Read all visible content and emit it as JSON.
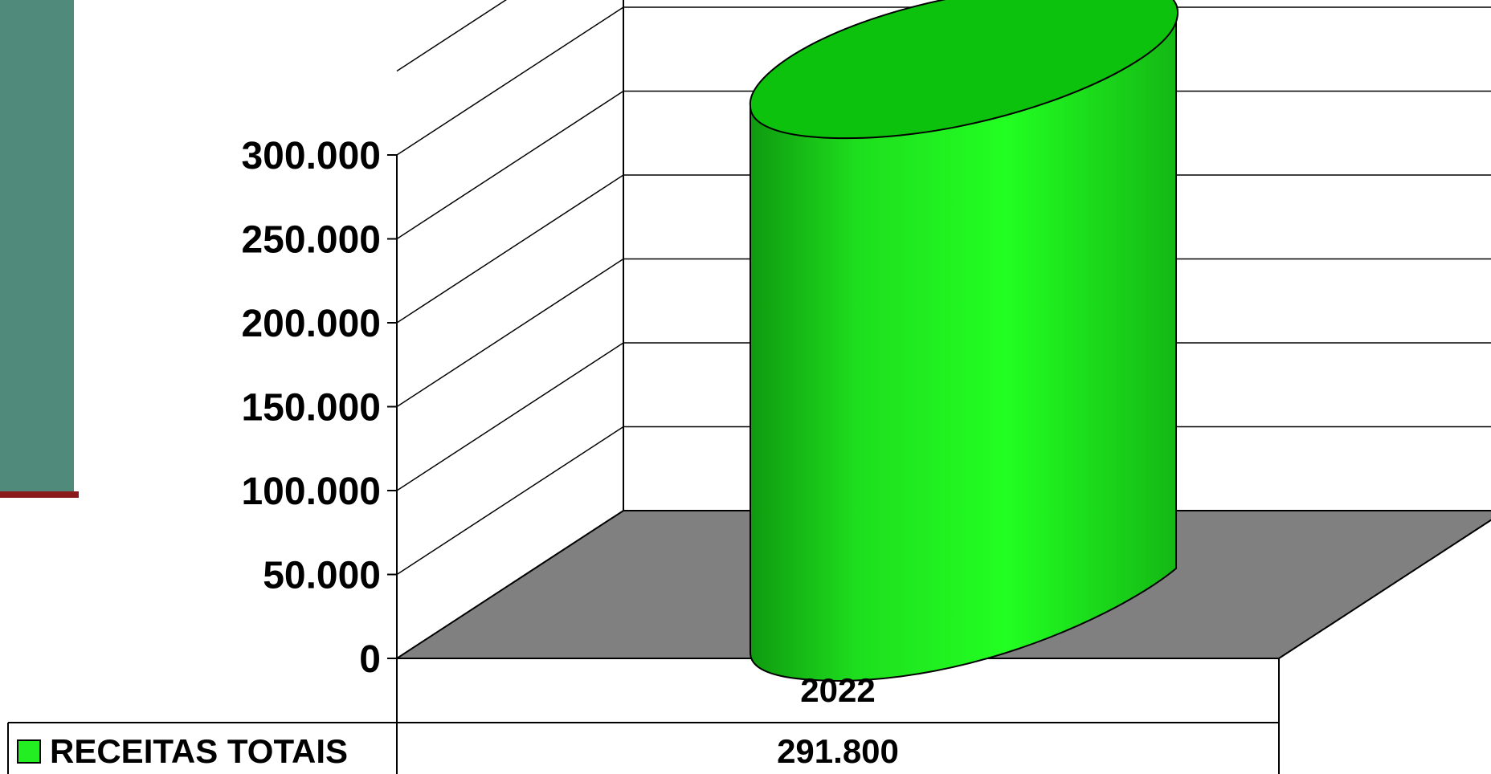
{
  "chart_data": {
    "type": "bar",
    "categories": [
      "2022"
    ],
    "series": [
      {
        "name": "RECEITAS TOTAIS",
        "values": [
          291800
        ],
        "value_label": "291.800",
        "color": "#22ee22"
      }
    ],
    "ylim": [
      0,
      350000
    ],
    "ytick_values": [
      0,
      50000,
      100000,
      150000,
      200000,
      250000,
      300000
    ],
    "ytick_labels": [
      "0",
      "50.000",
      "100.000",
      "150.000",
      "200.000",
      "250.000",
      "300.000"
    ],
    "grid": true,
    "legend": "bottom-left data table",
    "floor_color": "#808080",
    "bar_shape": "cylinder"
  }
}
